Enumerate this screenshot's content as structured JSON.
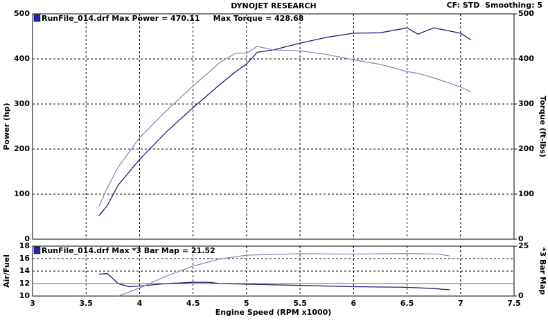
{
  "chart_data": [
    {
      "type": "line",
      "title": "DYNOJET RESEARCH",
      "annotation": "CF: STD  Smoothing: 5",
      "legend_text": "RunFile_014.drf Max Power = 470.11     Max Torque = 428.68",
      "ylabel": "Power (hp)",
      "y2label": "Torque (ft-lbs)",
      "xlim": [
        3.0,
        7.5
      ],
      "xticks": [
        3.5,
        4.0,
        4.5,
        5.0,
        5.5,
        6.0,
        6.5,
        7.0
      ],
      "ylim": [
        0,
        500
      ],
      "yticks": [
        0,
        100,
        200,
        300,
        400,
        500
      ],
      "y2lim": [
        0,
        500
      ],
      "y2ticks": [
        0,
        100,
        200,
        300,
        400,
        500
      ],
      "grid": true,
      "x": [
        3.62,
        3.7,
        3.8,
        4.0,
        4.25,
        4.5,
        4.75,
        4.9,
        5.0,
        5.1,
        5.25,
        5.5,
        5.75,
        6.0,
        6.25,
        6.5,
        6.6,
        6.75,
        7.0,
        7.1
      ],
      "series": [
        {
          "name": "Power",
          "color": "#1c1c78",
          "values": [
            52,
            75,
            120,
            177,
            238,
            292,
            343,
            372,
            389,
            415,
            420,
            435,
            448,
            457,
            458,
            469,
            455,
            469,
            457,
            442
          ]
        },
        {
          "name": "Torque",
          "color": "#8c8cba",
          "axis": "y2",
          "values": [
            72,
            115,
            160,
            225,
            285,
            340,
            392,
            413,
            413,
            428,
            420,
            418,
            410,
            398,
            388,
            372,
            368,
            358,
            338,
            326
          ]
        }
      ]
    },
    {
      "type": "line",
      "legend_text": "RunFile_014.drf Max *3 Bar Map = 21.52",
      "ylabel": "Air/Fuel",
      "y2label": "*3 Bar Map",
      "xlabel": "Engine Speed (RPM x1000)",
      "xlim": [
        3.0,
        7.5
      ],
      "xticks": [
        3.0,
        3.5,
        4.0,
        4.5,
        5.0,
        5.5,
        6.0,
        6.5,
        7.0,
        7.5
      ],
      "ylim": [
        10,
        18
      ],
      "yticks": [
        10,
        12,
        14,
        16,
        18
      ],
      "y2lim": [
        0,
        25
      ],
      "y2ticks": [
        0,
        25
      ],
      "grid": true,
      "hline": 12,
      "hline_color": "#e03030",
      "series": [
        {
          "name": "Air/Fuel",
          "color": "#1c1c78",
          "x": [
            3.62,
            3.7,
            3.8,
            3.9,
            4.0,
            4.25,
            4.5,
            4.65,
            4.75,
            5.0,
            5.5,
            6.0,
            6.5,
            6.75,
            6.9
          ],
          "values": [
            13.5,
            13.6,
            12,
            11.5,
            11.6,
            12.0,
            12.2,
            12.2,
            12.0,
            11.9,
            11.7,
            11.5,
            11.4,
            11.2,
            11.0
          ]
        },
        {
          "name": "*3 Bar Map",
          "color": "#8c8cba",
          "axis": "y2",
          "x": [
            3.8,
            4.0,
            4.25,
            4.5,
            4.75,
            5.0,
            5.5,
            6.0,
            6.5,
            6.8,
            6.9
          ],
          "values": [
            0,
            4,
            10,
            15,
            18.5,
            20.5,
            21.2,
            21,
            21.3,
            21,
            20
          ]
        }
      ]
    }
  ]
}
